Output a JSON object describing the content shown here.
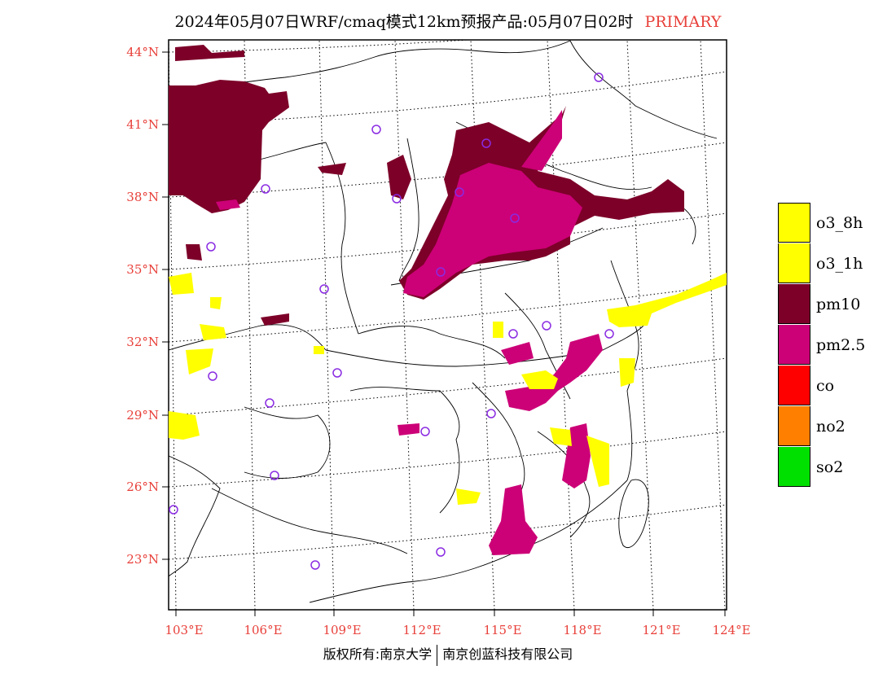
{
  "title": {
    "main": "2024年05月07日WRF/cmaq模式12km预报产品:05月07日02时",
    "tag": "PRIMARY"
  },
  "map": {
    "lat_labels": [
      "44°N",
      "41°N",
      "38°N",
      "35°N",
      "32°N",
      "29°N",
      "26°N",
      "23°N"
    ],
    "lon_labels": [
      "103°E",
      "106°E",
      "109°E",
      "112°E",
      "115°E",
      "118°E",
      "121°E",
      "124°E"
    ]
  },
  "legend": [
    {
      "label": "o3_8h",
      "color": "#ffff00"
    },
    {
      "label": "o3_1h",
      "color": "#ffff00"
    },
    {
      "label": "pm10",
      "color": "#7d0029"
    },
    {
      "label": "pm2.5",
      "color": "#cc0077"
    },
    {
      "label": "co",
      "color": "#ff0000"
    },
    {
      "label": "no2",
      "color": "#ff8000"
    },
    {
      "label": "so2",
      "color": "#00e000"
    }
  ],
  "colors": {
    "pm10": "#7d0029",
    "pm25": "#cc0077",
    "o3": "#ffff00",
    "station": "#8a2be2",
    "labels": "#e8403a"
  },
  "footer": {
    "left": "版权所有:南京大学",
    "right": "南京创蓝科技有限公司"
  }
}
